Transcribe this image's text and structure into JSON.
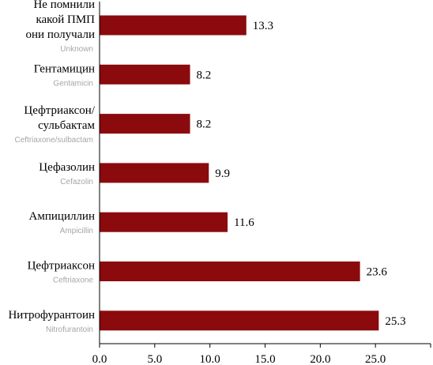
{
  "chart_data": {
    "type": "bar",
    "orientation": "horizontal",
    "title": "",
    "xlabel": "",
    "ylabel": "",
    "xlim": [
      0,
      30
    ],
    "xticks": [
      "0.0",
      "5.0",
      "10.0",
      "15.0",
      "20.0",
      "25.0"
    ],
    "grid": false,
    "legend": "none",
    "bar_color": "#8b0a0d",
    "categories": [
      {
        "ru": [
          "Не помнили",
          "какой ПМП",
          "они получали"
        ],
        "en": "Unknown",
        "value": 13.3,
        "label": "13.3"
      },
      {
        "ru": [
          "Гентамицин"
        ],
        "en": "Gentamicin",
        "value": 8.2,
        "label": "8.2"
      },
      {
        "ru": [
          "Цефтриаксон/",
          "сульбактам"
        ],
        "en": "Ceftriaxone/sulbactam",
        "value": 8.2,
        "label": "8.2"
      },
      {
        "ru": [
          "Цефазолин"
        ],
        "en": "Cefazolin",
        "value": 9.9,
        "label": "9.9"
      },
      {
        "ru": [
          "Ампициллин"
        ],
        "en": "Ampicillin",
        "value": 11.6,
        "label": "11.6"
      },
      {
        "ru": [
          "Цефтриаксон"
        ],
        "en": "Ceftriaxone",
        "value": 23.6,
        "label": "23.6"
      },
      {
        "ru": [
          "Нитрофурантоин"
        ],
        "en": "Nitrofurantoin",
        "value": 25.3,
        "label": "25.3"
      }
    ]
  }
}
